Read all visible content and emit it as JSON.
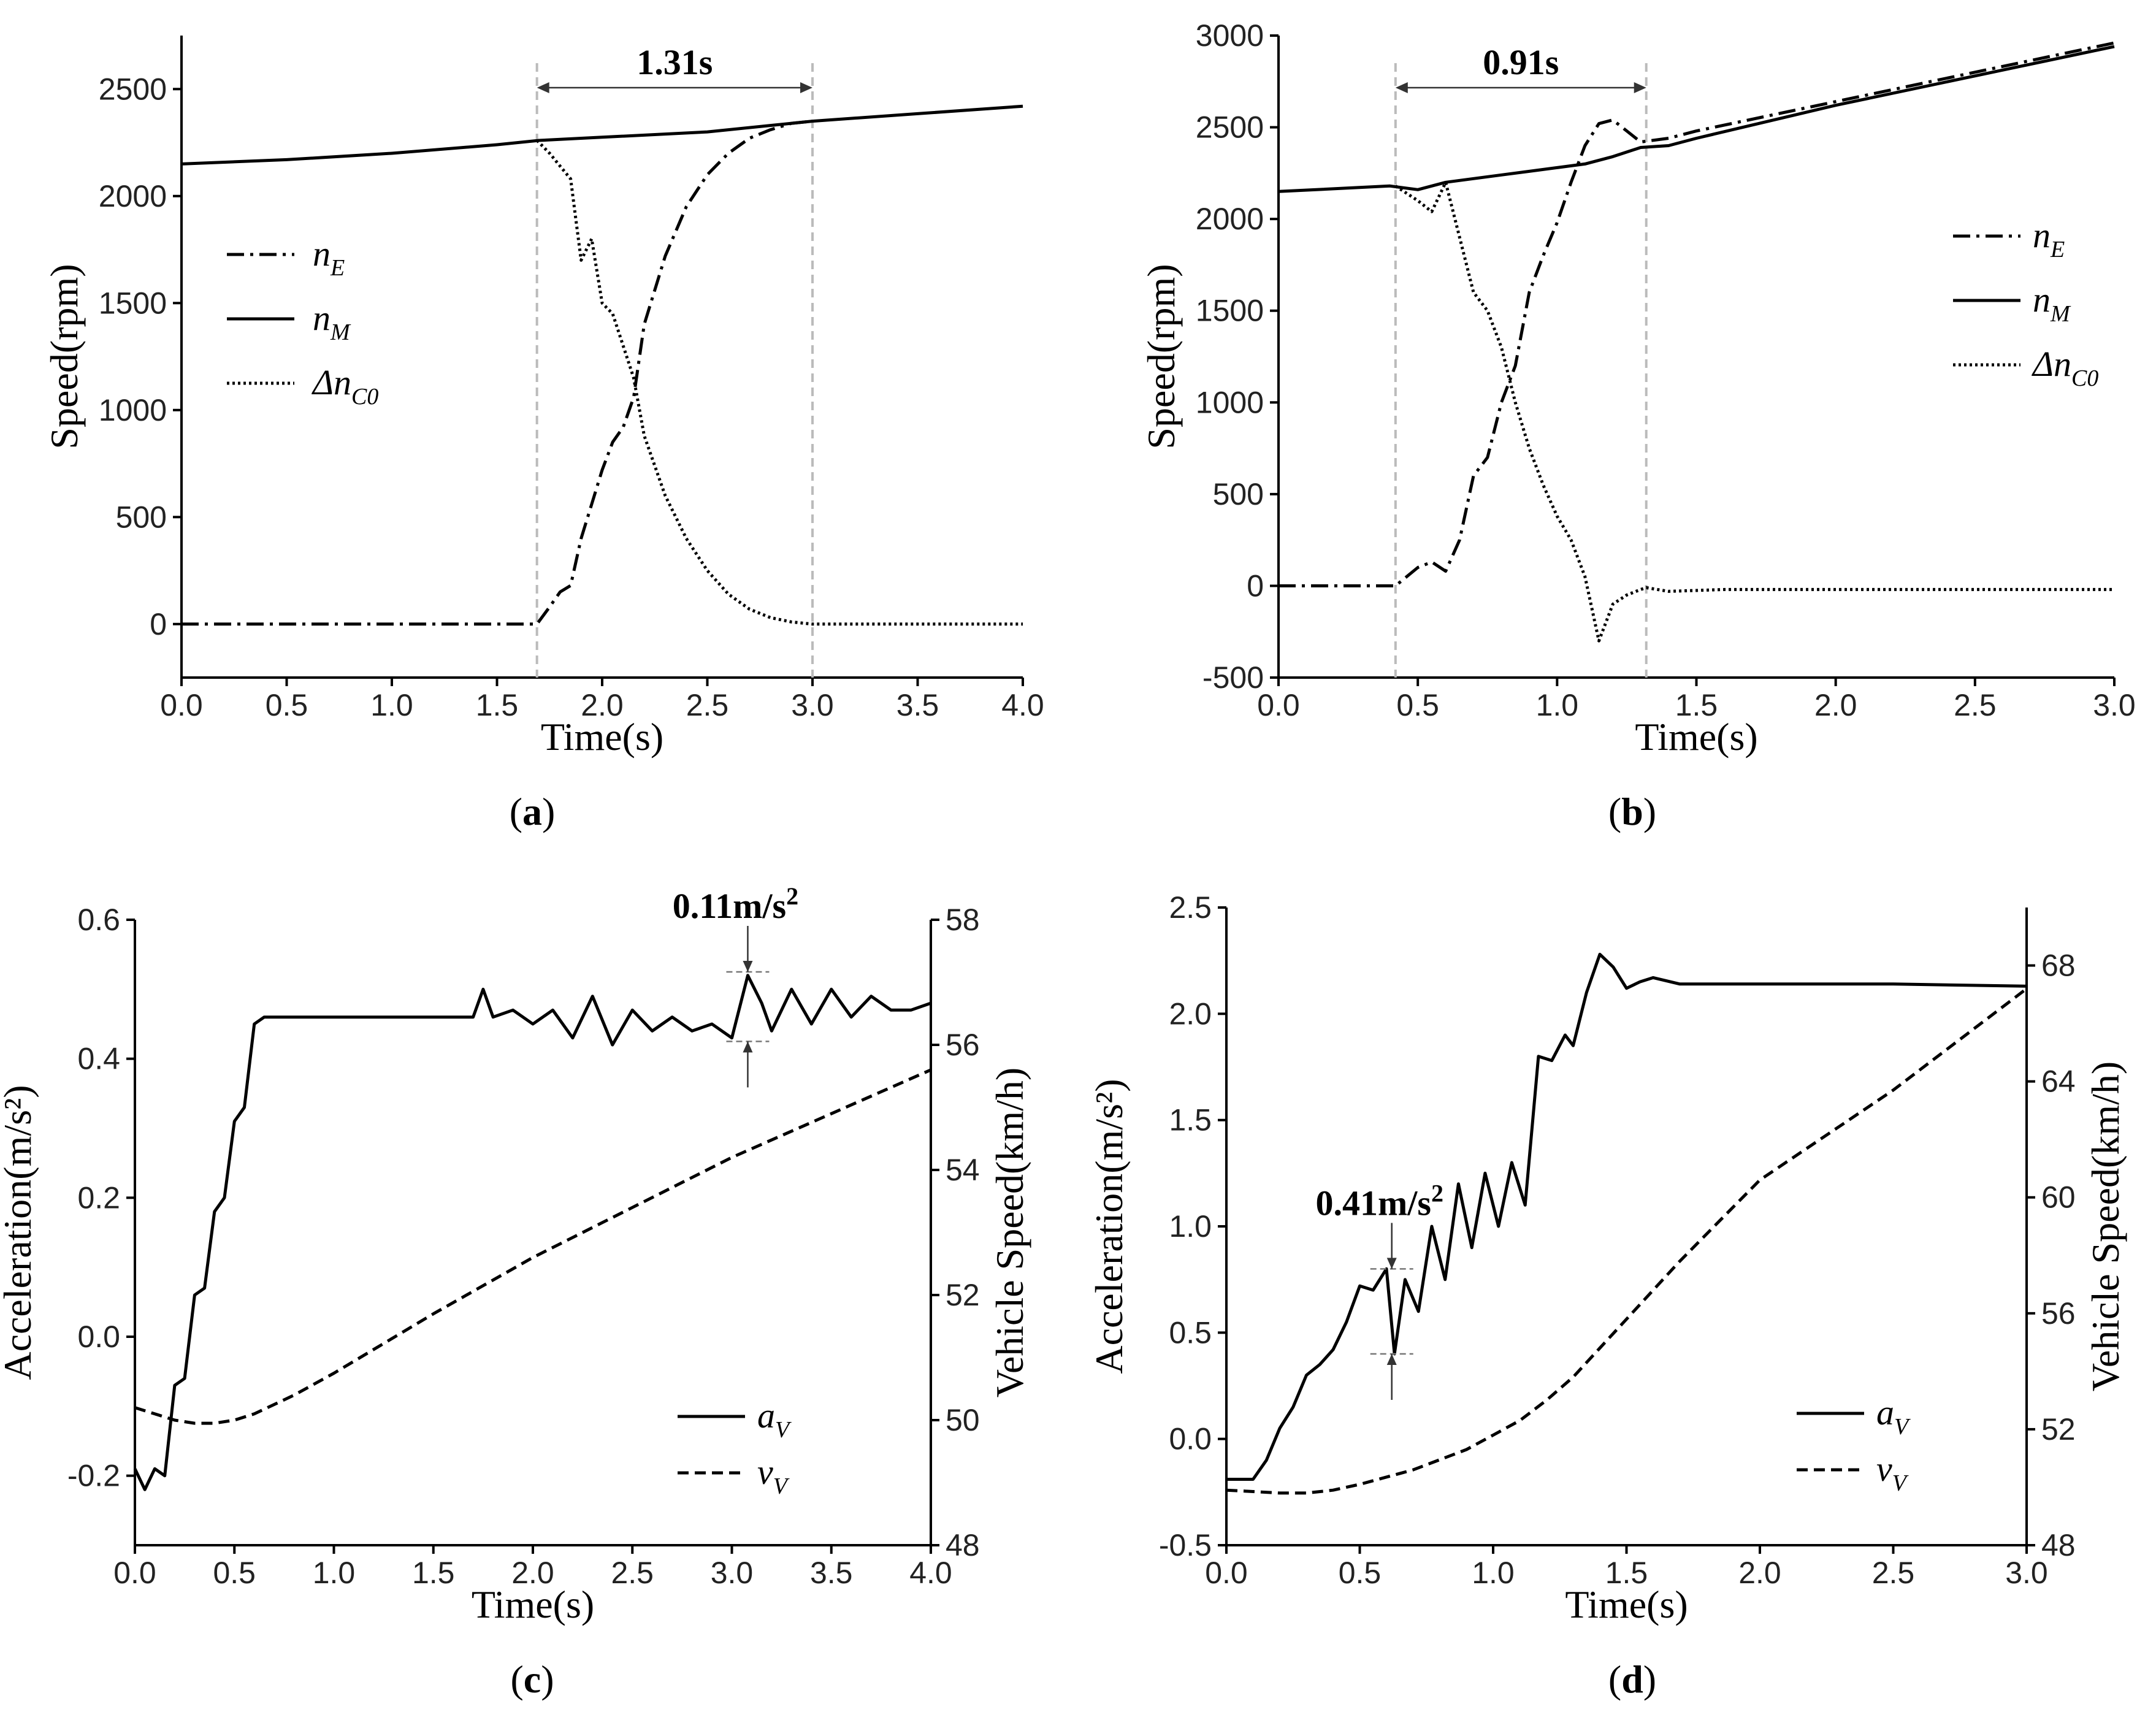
{
  "chart_data": [
    {
      "id": "a",
      "type": "line",
      "caption": "a",
      "xlabel": "Time(s)",
      "ylabel": "Speed(rpm)",
      "xlim": [
        0,
        4.0
      ],
      "ylim": [
        -250,
        2750
      ],
      "xticks": [
        0.0,
        0.5,
        1.0,
        1.5,
        2.0,
        2.5,
        3.0,
        3.5,
        4.0
      ],
      "xtick_labels": [
        "0.0",
        "0.5",
        "1.0",
        "1.5",
        "2.0",
        "2.5",
        "3.0",
        "3.5",
        "4.0"
      ],
      "yticks": [
        0,
        500,
        1000,
        1500,
        2000,
        2500
      ],
      "ytick_labels": [
        "0",
        "500",
        "1000",
        "1500",
        "2000",
        "2500"
      ],
      "legend": {
        "position": "left",
        "entries": [
          {
            "label": "n",
            "sub": "E",
            "style": "dashdot"
          },
          {
            "label": "n",
            "sub": "M",
            "style": "solid"
          },
          {
            "label": "Δn",
            "sub": "C0",
            "style": "dotted"
          }
        ]
      },
      "markers": {
        "x_start": 1.69,
        "x_end": 3.0,
        "label": "1.31s"
      },
      "series": [
        {
          "name": "n_E",
          "style": "dashdot",
          "x": [
            0,
            1.69,
            1.75,
            1.8,
            1.85,
            1.9,
            1.95,
            2.0,
            2.05,
            2.1,
            2.15,
            2.2,
            2.3,
            2.4,
            2.5,
            2.6,
            2.7,
            2.8,
            2.9,
            3.0
          ],
          "y": [
            0,
            0,
            80,
            150,
            180,
            400,
            560,
            720,
            850,
            920,
            1060,
            1400,
            1720,
            1950,
            2100,
            2200,
            2270,
            2310,
            2340,
            2350
          ]
        },
        {
          "name": "n_M",
          "style": "solid",
          "x": [
            0,
            0.5,
            1.0,
            1.5,
            1.7,
            2.0,
            2.5,
            3.0,
            3.5,
            4.0
          ],
          "y": [
            2150,
            2170,
            2200,
            2240,
            2260,
            2275,
            2300,
            2350,
            2385,
            2420
          ]
        },
        {
          "name": "Δn_C0",
          "style": "dotted",
          "x": [
            1.69,
            1.75,
            1.8,
            1.85,
            1.9,
            1.95,
            2.0,
            2.05,
            2.1,
            2.15,
            2.2,
            2.3,
            2.4,
            2.5,
            2.6,
            2.7,
            2.8,
            2.9,
            3.0,
            4.0
          ],
          "y": [
            2260,
            2200,
            2140,
            2080,
            1700,
            1800,
            1500,
            1450,
            1300,
            1150,
            880,
            600,
            400,
            250,
            140,
            70,
            30,
            10,
            0,
            0
          ]
        }
      ]
    },
    {
      "id": "b",
      "type": "line",
      "caption": "b",
      "xlabel": "Time(s)",
      "ylabel": "Speed(rpm)",
      "xlim": [
        0,
        3.0
      ],
      "ylim": [
        -500,
        3000
      ],
      "xticks": [
        0.0,
        0.5,
        1.0,
        1.5,
        2.0,
        2.5,
        3.0
      ],
      "xtick_labels": [
        "0.0",
        "0.5",
        "1.0",
        "1.5",
        "2.0",
        "2.5",
        "3.0"
      ],
      "yticks": [
        -500,
        0,
        500,
        1000,
        1500,
        2000,
        2500,
        3000
      ],
      "ytick_labels": [
        "-500",
        "0",
        "500",
        "1000",
        "1500",
        "2000",
        "2500",
        "3000"
      ],
      "legend": {
        "position": "right",
        "entries": [
          {
            "label": "n",
            "sub": "E",
            "style": "dashdot"
          },
          {
            "label": "n",
            "sub": "M",
            "style": "solid"
          },
          {
            "label": "Δn",
            "sub": "C0",
            "style": "dotted"
          }
        ]
      },
      "markers": {
        "x_start": 0.42,
        "x_end": 1.32,
        "label": "0.91s"
      },
      "series": [
        {
          "name": "n_E",
          "style": "dashdot",
          "x": [
            0,
            0.42,
            0.5,
            0.55,
            0.6,
            0.65,
            0.7,
            0.75,
            0.8,
            0.85,
            0.9,
            0.95,
            1.0,
            1.05,
            1.1,
            1.15,
            1.2,
            1.25,
            1.3,
            1.4,
            1.5,
            2.0,
            2.5,
            3.0
          ],
          "y": [
            0,
            0,
            100,
            130,
            80,
            250,
            600,
            700,
            1000,
            1200,
            1600,
            1800,
            1980,
            2200,
            2400,
            2520,
            2540,
            2480,
            2420,
            2440,
            2480,
            2640,
            2800,
            2960
          ]
        },
        {
          "name": "n_M",
          "style": "solid",
          "x": [
            0,
            0.4,
            0.5,
            0.6,
            0.7,
            0.8,
            0.9,
            1.0,
            1.1,
            1.2,
            1.3,
            1.4,
            1.5,
            2.0,
            2.5,
            3.0
          ],
          "y": [
            2150,
            2180,
            2160,
            2200,
            2220,
            2240,
            2260,
            2280,
            2300,
            2340,
            2390,
            2400,
            2440,
            2620,
            2780,
            2940
          ]
        },
        {
          "name": "Δn_C0",
          "style": "dotted",
          "x": [
            0.42,
            0.5,
            0.55,
            0.6,
            0.65,
            0.7,
            0.75,
            0.8,
            0.85,
            0.9,
            0.95,
            1.0,
            1.05,
            1.1,
            1.15,
            1.2,
            1.25,
            1.3,
            1.32,
            1.4,
            1.6,
            2.0,
            3.0
          ],
          "y": [
            2180,
            2100,
            2040,
            2200,
            1900,
            1600,
            1500,
            1300,
            1000,
            750,
            550,
            380,
            250,
            50,
            -300,
            -100,
            -50,
            -20,
            -10,
            -30,
            -20,
            -20,
            -20
          ]
        }
      ]
    },
    {
      "id": "c",
      "type": "line",
      "caption": "c",
      "xlabel": "Time(s)",
      "ylabel": "Acceleration(m/s²)",
      "ylabel2": "Vehicle Speed(km/h)",
      "xlim": [
        0,
        4.0
      ],
      "ylim": [
        -0.3,
        0.6
      ],
      "y2lim": [
        48,
        58
      ],
      "xticks": [
        0.0,
        0.5,
        1.0,
        1.5,
        2.0,
        2.5,
        3.0,
        3.5,
        4.0
      ],
      "xtick_labels": [
        "0.0",
        "0.5",
        "1.0",
        "1.5",
        "2.0",
        "2.5",
        "3.0",
        "3.5",
        "4.0"
      ],
      "yticks": [
        -0.2,
        0.0,
        0.2,
        0.4,
        0.6
      ],
      "ytick_labels": [
        "-0.2",
        "0.0",
        "0.2",
        "0.4",
        "0.6"
      ],
      "y2ticks": [
        48,
        50,
        52,
        54,
        56,
        58
      ],
      "y2tick_labels": [
        "48",
        "50",
        "52",
        "54",
        "56",
        "58"
      ],
      "legend": {
        "position": "bottom-right",
        "entries": [
          {
            "label": "a",
            "sub": "V",
            "style": "solid"
          },
          {
            "label": "v",
            "sub": "V",
            "style": "dashed"
          }
        ]
      },
      "annotation": {
        "label": "0.11m/s",
        "sup": "2",
        "x": 3.08,
        "y_top": 0.525,
        "y_bottom": 0.425
      },
      "series": [
        {
          "name": "a_V",
          "style": "solid",
          "axis": "left",
          "x": [
            0,
            0.05,
            0.1,
            0.15,
            0.2,
            0.25,
            0.3,
            0.35,
            0.4,
            0.45,
            0.5,
            0.55,
            0.6,
            0.65,
            0.7,
            1.0,
            1.5,
            1.7,
            1.75,
            1.8,
            1.9,
            2.0,
            2.1,
            2.2,
            2.3,
            2.4,
            2.5,
            2.6,
            2.7,
            2.8,
            2.9,
            3.0,
            3.08,
            3.15,
            3.2,
            3.3,
            3.4,
            3.5,
            3.6,
            3.7,
            3.8,
            3.9,
            4.0
          ],
          "y": [
            -0.19,
            -0.22,
            -0.19,
            -0.2,
            -0.07,
            -0.06,
            0.06,
            0.07,
            0.18,
            0.2,
            0.31,
            0.33,
            0.45,
            0.46,
            0.46,
            0.46,
            0.46,
            0.46,
            0.5,
            0.46,
            0.47,
            0.45,
            0.47,
            0.43,
            0.49,
            0.42,
            0.47,
            0.44,
            0.46,
            0.44,
            0.45,
            0.43,
            0.52,
            0.48,
            0.44,
            0.5,
            0.45,
            0.5,
            0.46,
            0.49,
            0.47,
            0.47,
            0.48
          ]
        },
        {
          "name": "v_V",
          "style": "dashed",
          "axis": "right",
          "x": [
            0,
            0.1,
            0.2,
            0.3,
            0.4,
            0.5,
            0.6,
            0.8,
            1.0,
            1.5,
            2.0,
            2.5,
            3.0,
            3.5,
            4.0
          ],
          "y": [
            50.2,
            50.1,
            50.0,
            49.95,
            49.95,
            50.0,
            50.1,
            50.4,
            50.75,
            51.7,
            52.6,
            53.4,
            54.2,
            54.9,
            55.6
          ]
        }
      ]
    },
    {
      "id": "d",
      "type": "line",
      "caption": "d",
      "xlabel": "Time(s)",
      "ylabel": "Acceleration(m/s²)",
      "ylabel2": "Vehicle Speed(km/h)",
      "xlim": [
        0,
        3.0
      ],
      "ylim": [
        -0.5,
        2.5
      ],
      "y2lim": [
        48,
        70
      ],
      "xticks": [
        0.0,
        0.5,
        1.0,
        1.5,
        2.0,
        2.5,
        3.0
      ],
      "xtick_labels": [
        "0.0",
        "0.5",
        "1.0",
        "1.5",
        "2.0",
        "2.5",
        "3.0"
      ],
      "yticks": [
        -0.5,
        0.0,
        0.5,
        1.0,
        1.5,
        2.0,
        2.5
      ],
      "ytick_labels": [
        "-0.5",
        "0.0",
        "0.5",
        "1.0",
        "1.5",
        "2.0",
        "2.5"
      ],
      "y2ticks": [
        48,
        52,
        56,
        60,
        64,
        68
      ],
      "y2tick_labels": [
        "48",
        "52",
        "56",
        "60",
        "64",
        "68"
      ],
      "legend": {
        "position": "bottom-right",
        "entries": [
          {
            "label": "a",
            "sub": "V",
            "style": "solid"
          },
          {
            "label": "v",
            "sub": "V",
            "style": "dashed"
          }
        ]
      },
      "annotation": {
        "label": "0.41m/s",
        "sup": "2",
        "x": 0.62,
        "y_top": 0.8,
        "y_bottom": 0.4
      },
      "series": [
        {
          "name": "a_V",
          "style": "solid",
          "axis": "left",
          "x": [
            0,
            0.1,
            0.15,
            0.2,
            0.25,
            0.3,
            0.35,
            0.4,
            0.45,
            0.5,
            0.55,
            0.6,
            0.63,
            0.67,
            0.72,
            0.77,
            0.82,
            0.87,
            0.92,
            0.97,
            1.02,
            1.07,
            1.12,
            1.17,
            1.22,
            1.27,
            1.3,
            1.35,
            1.4,
            1.45,
            1.5,
            1.55,
            1.6,
            1.7,
            2.0,
            2.5,
            3.0
          ],
          "y": [
            -0.19,
            -0.19,
            -0.1,
            0.05,
            0.15,
            0.3,
            0.35,
            0.42,
            0.55,
            0.72,
            0.7,
            0.8,
            0.4,
            0.75,
            0.6,
            1.0,
            0.75,
            1.2,
            0.9,
            1.25,
            1.0,
            1.3,
            1.1,
            1.8,
            1.78,
            1.9,
            1.85,
            2.1,
            2.28,
            2.22,
            2.12,
            2.15,
            2.17,
            2.14,
            2.14,
            2.14,
            2.13
          ]
        },
        {
          "name": "v_V",
          "style": "dashed",
          "axis": "right",
          "x": [
            0,
            0.1,
            0.2,
            0.3,
            0.4,
            0.5,
            0.7,
            0.9,
            1.0,
            1.1,
            1.2,
            1.3,
            1.4,
            1.5,
            1.7,
            2.0,
            2.5,
            3.0
          ],
          "y": [
            49.9,
            49.85,
            49.8,
            49.8,
            49.9,
            50.1,
            50.6,
            51.3,
            51.8,
            52.3,
            53.0,
            53.8,
            54.8,
            55.8,
            57.8,
            60.6,
            63.7,
            67.2
          ]
        }
      ]
    }
  ]
}
